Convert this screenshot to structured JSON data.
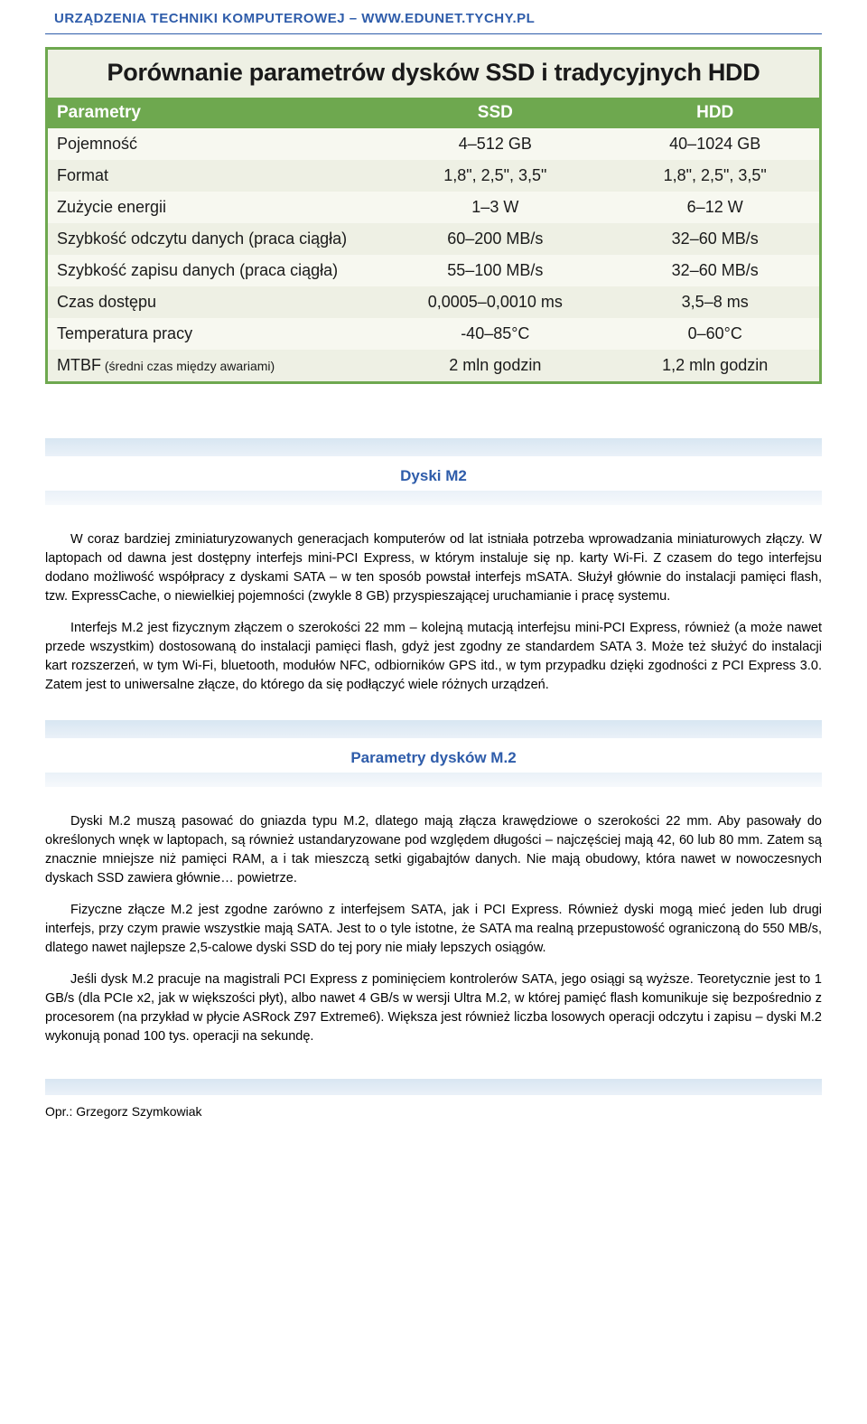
{
  "header": {
    "text": "URZĄDZENIA TECHNIKI KOMPUTEROWEJ – WWW.EDUNET.TYCHY.PL",
    "color": "#2e5caa"
  },
  "comparison_table": {
    "type": "table",
    "title": "Porównanie parametrów dysków SSD i tradycyjnych HDD",
    "border_color": "#6ea84f",
    "header_bg": "#6ea84f",
    "header_fg": "#ffffff",
    "row_bg_odd": "#f7f8f0",
    "row_bg_even": "#eef0e4",
    "title_bg": "#eef0e4",
    "title_fontsize": 27,
    "body_fontsize": 18,
    "columns": [
      "Parametry",
      "SSD",
      "HDD"
    ],
    "column_widths_pct": [
      43,
      30,
      27
    ],
    "rows": [
      {
        "param": "Pojemność",
        "sub": "",
        "ssd": "4–512 GB",
        "hdd": "40–1024 GB"
      },
      {
        "param": "Format",
        "sub": "",
        "ssd": "1,8\", 2,5\", 3,5\"",
        "hdd": "1,8\", 2,5\", 3,5\""
      },
      {
        "param": "Zużycie energii",
        "sub": "",
        "ssd": "1–3 W",
        "hdd": "6–12 W"
      },
      {
        "param": "Szybkość odczytu danych (praca ciągła)",
        "sub": "",
        "ssd": "60–200 MB/s",
        "hdd": "32–60 MB/s"
      },
      {
        "param": "Szybkość zapisu danych (praca ciągła)",
        "sub": "",
        "ssd": "55–100 MB/s",
        "hdd": "32–60 MB/s"
      },
      {
        "param": "Czas dostępu",
        "sub": "",
        "ssd": "0,0005–0,0010 ms",
        "hdd": "3,5–8 ms"
      },
      {
        "param": "Temperatura pracy",
        "sub": "",
        "ssd": "-40–85°C",
        "hdd": "0–60°C"
      },
      {
        "param": "MTBF",
        "sub": " (średni czas między awariami)",
        "ssd": "2 mln godzin",
        "hdd": "1,2 mln godzin"
      }
    ]
  },
  "sections": {
    "m2": {
      "heading": "Dyski M2",
      "paragraphs": [
        "W coraz bardziej zminiaturyzowanych generacjach komputerów od lat istniała potrzeba wprowadzania miniaturowych złączy. W laptopach od dawna jest dostępny interfejs mini-PCI Express, w którym instaluje się np. karty Wi-Fi. Z czasem do tego interfejsu dodano możliwość współpracy z dyskami SATA – w ten sposób powstał interfejs mSATA. Służył głównie do instalacji pamięci flash, tzw. ExpressCache, o niewielkiej pojemności (zwykle 8 GB) przyspieszającej uruchamianie i pracę systemu.",
        "Interfejs M.2 jest fizycznym złączem o szerokości 22 mm – kolejną mutacją interfejsu mini-PCI Express, również (a może nawet przede wszystkim) dostosowaną do instalacji pamięci flash, gdyż jest zgodny ze standardem SATA 3. Może też służyć do instalacji kart rozszerzeń, w tym Wi-Fi, bluetooth, modułów NFC, odbiorników GPS itd., w tym przypadku dzięki zgodności z PCI Express 3.0. Zatem jest to uniwersalne złącze, do którego da się podłączyć wiele różnych urządzeń."
      ]
    },
    "params": {
      "heading": "Parametry dysków M.2",
      "paragraphs": [
        "Dyski M.2 muszą pasować do gniazda typu M.2, dlatego mają złącza krawędziowe o szerokości 22 mm. Aby pasowały do określonych wnęk w laptopach, są również ustandaryzowane pod względem długości – najczęściej mają 42, 60 lub 80 mm. Zatem są znacznie mniejsze niż pamięci RAM, a i tak mieszczą setki gigabajtów danych. Nie mają obudowy, która nawet w nowoczesnych dyskach SSD zawiera głównie… powietrze.",
        "Fizyczne złącze M.2 jest zgodne zarówno z interfejsem SATA, jak i PCI Express. Również dyski mogą mieć jeden lub drugi interfejs, przy czym prawie wszystkie mają SATA. Jest to o tyle istotne, że SATA ma realną przepustowość ograniczoną do 550 MB/s, dlatego nawet najlepsze 2,5-calowe dyski SSD do tej pory nie miały lepszych osiągów.",
        "Jeśli dysk M.2 pracuje na magistrali PCI Express z pominięciem kontrolerów SATA, jego osiągi są wyższe. Teoretycznie jest to 1 GB/s (dla PCIe x2, jak w większości płyt), albo nawet 4 GB/s w wersji Ultra M.2, w której pamięć flash komunikuje się bezpośrednio z procesorem (na przykład w płycie ASRock Z97 Extreme6). Większa jest również liczba losowych operacji odczytu i zapisu – dyski M.2 wykonują ponad 100 tys. operacji na sekundę."
      ]
    }
  },
  "footer": {
    "text": "Opr.: Grzegorz Szymkowiak"
  }
}
